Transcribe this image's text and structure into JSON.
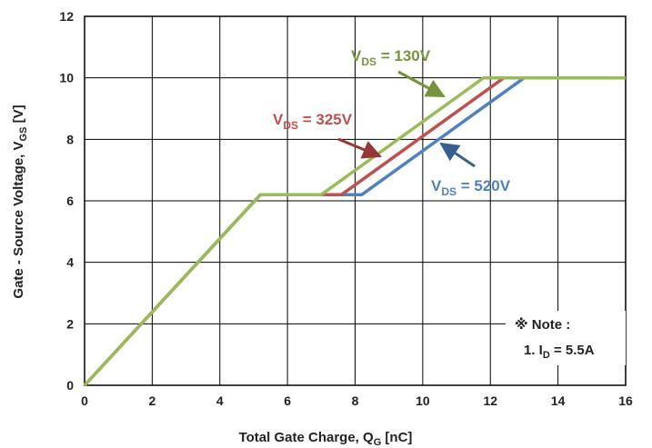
{
  "chart_data": {
    "type": "line",
    "xlabel": {
      "main": "Total Gate Charge, Q",
      "sub": "G",
      "unit": " [nC]"
    },
    "ylabel": {
      "main": "Gate - Source Voltage, V",
      "sub": "GS",
      "unit": " [V]"
    },
    "xlim": [
      0,
      16
    ],
    "ylim": [
      0,
      12
    ],
    "xticks": [
      0,
      2,
      4,
      6,
      8,
      10,
      12,
      14,
      16
    ],
    "yticks": [
      0,
      2,
      4,
      6,
      8,
      10,
      12
    ],
    "grid": true,
    "series": [
      {
        "name": "VDS = 520V",
        "label_main": "V",
        "label_sub": "DS",
        "label_rest": " = 520V",
        "color": "#4f81bd",
        "x": [
          0,
          5.2,
          8.2,
          13.0,
          16.0
        ],
        "y": [
          0,
          6.2,
          6.2,
          10.0,
          10.0
        ]
      },
      {
        "name": "VDS = 325V",
        "label_main": "V",
        "label_sub": "DS",
        "label_rest": " = 325V",
        "color": "#c0504d",
        "x": [
          0,
          5.2,
          7.6,
          12.4,
          16.0
        ],
        "y": [
          0,
          6.2,
          6.2,
          10.0,
          10.0
        ]
      },
      {
        "name": "VDS = 130V",
        "label_main": "V",
        "label_sub": "DS",
        "label_rest": " = 130V",
        "color": "#9bbb59",
        "x": [
          0,
          5.2,
          7.0,
          11.8,
          16.0
        ],
        "y": [
          0,
          6.2,
          6.2,
          10.0,
          10.0
        ]
      }
    ],
    "note": {
      "title": "※ Note :",
      "line_prefix": "1. I",
      "line_sub": "D",
      "line_rest": " = 5.5A"
    }
  }
}
